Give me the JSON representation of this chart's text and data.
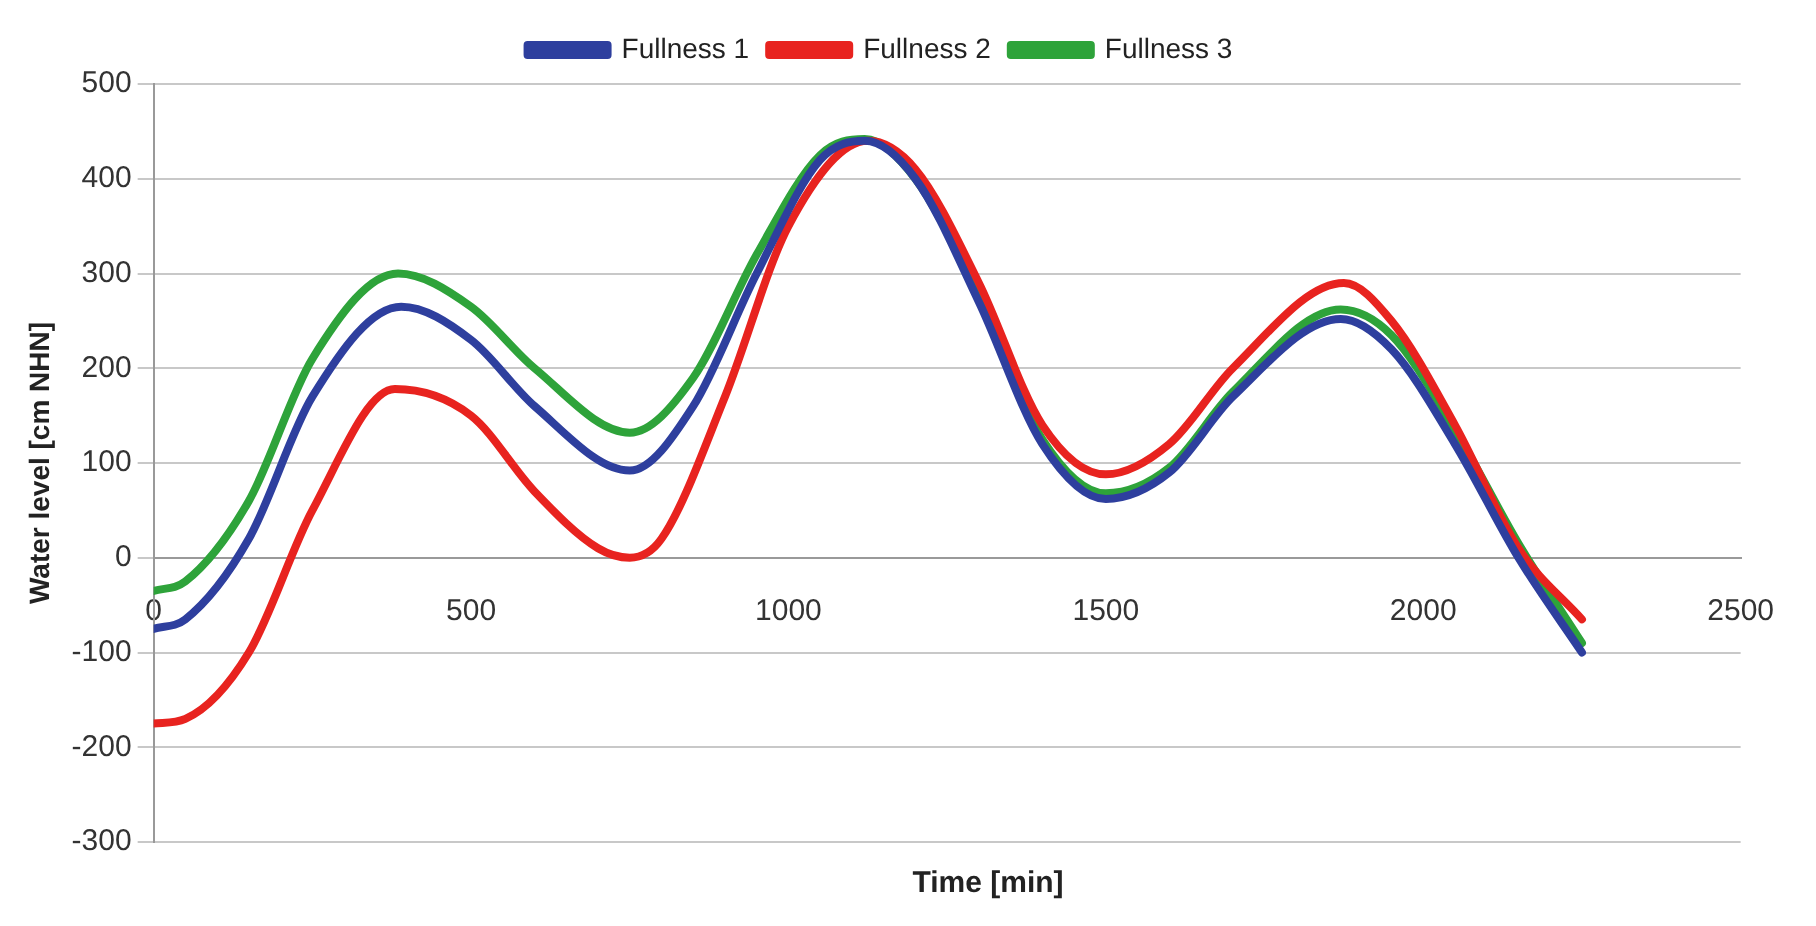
{
  "chart_data": {
    "type": "line",
    "xlabel": "Time [min]",
    "ylabel": "Water level [cm NHN]",
    "xlim": [
      0,
      2500
    ],
    "xticks": [
      0,
      500,
      1000,
      1500,
      2000,
      2500
    ],
    "ylim": [
      -300,
      500
    ],
    "yticks": [
      -300,
      -200,
      -100,
      0,
      100,
      200,
      300,
      400,
      500
    ],
    "grid": "y",
    "legend": "top",
    "marker": "none",
    "line_style": "solid",
    "series": [
      {
        "name": "Fullness 1",
        "color": "#2e3f9e",
        "x": [
          0,
          50,
          150,
          250,
          390,
          500,
          600,
          750,
          850,
          950,
          1050,
          1120,
          1200,
          1300,
          1400,
          1500,
          1600,
          1700,
          1870,
          1950,
          2050,
          2150,
          2250
        ],
        "values": [
          -75,
          -65,
          20,
          170,
          265,
          230,
          160,
          92,
          160,
          300,
          420,
          440,
          400,
          270,
          120,
          62,
          90,
          170,
          252,
          220,
          120,
          0,
          -100
        ]
      },
      {
        "name": "Fullness 2",
        "color": "#e8231f",
        "x": [
          0,
          50,
          150,
          250,
          380,
          500,
          600,
          700,
          750,
          800,
          900,
          1000,
          1125,
          1200,
          1300,
          1400,
          1500,
          1600,
          1700,
          1875,
          1950,
          2050,
          2150,
          2250
        ],
        "values": [
          -175,
          -170,
          -100,
          50,
          178,
          150,
          70,
          10,
          0,
          20,
          170,
          350,
          440,
          410,
          290,
          140,
          88,
          120,
          200,
          290,
          250,
          140,
          10,
          -65
        ]
      },
      {
        "name": "Fullness 3",
        "color": "#2ea33a",
        "x": [
          0,
          50,
          150,
          250,
          385,
          500,
          600,
          750,
          850,
          950,
          1050,
          1120,
          1200,
          1300,
          1400,
          1500,
          1600,
          1700,
          1870,
          1950,
          2050,
          2150,
          2250
        ],
        "values": [
          -35,
          -25,
          60,
          210,
          300,
          265,
          200,
          132,
          190,
          320,
          425,
          442,
          400,
          275,
          125,
          68,
          95,
          175,
          262,
          235,
          135,
          15,
          -90
        ]
      }
    ]
  }
}
